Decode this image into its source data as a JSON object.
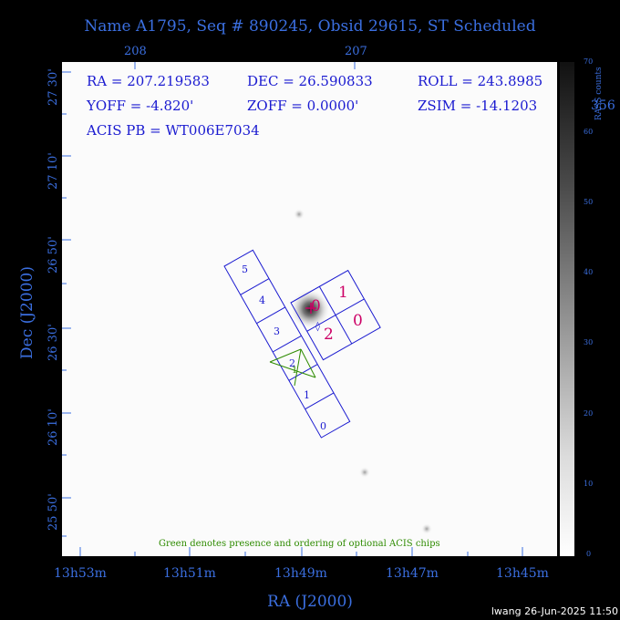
{
  "title": "Name A1795, Seq # 890245, Obsid 29615, ST Scheduled",
  "info": {
    "ra": "RA = 207.219583",
    "dec": "DEC = 26.590833",
    "roll": "ROLL = 243.8985",
    "yoff": "YOFF =  -4.820'",
    "zoff": "ZOFF =  0.0000'",
    "zsim": "ZSIM = -14.1203",
    "acis_pb": "ACIS PB = WT006E7034"
  },
  "top_axis": {
    "ticks": [
      "208",
      "207"
    ]
  },
  "x_axis": {
    "label": "RA (J2000)",
    "ticks": [
      "13h53m",
      "13h51m",
      "13h49m",
      "13h47m",
      "13h45m"
    ]
  },
  "y_axis": {
    "label": "Dec (J2000)",
    "ticks": [
      "27 30'",
      "27 10'",
      "26 50'",
      "26 30'",
      "26 10'",
      "25 50'"
    ]
  },
  "colorbar": {
    "label": "RASS counts",
    "ticks": [
      "70",
      "60",
      "50",
      "40",
      "30",
      "20",
      "10",
      "0"
    ],
    "overflow_label": "356"
  },
  "chips": {
    "s_array": [
      "5",
      "4",
      "3",
      "2",
      "1",
      "0"
    ],
    "i_array": [
      "1",
      "0",
      "2",
      "0"
    ]
  },
  "optional_chips": [
    "2",
    "1"
  ],
  "note": "Green denotes presence and ordering of optional ACIS chips",
  "footer": "lwang 26-Jun-2025 11:50",
  "colors": {
    "axes": "#3b6fe0",
    "chips": "#1a1ad0",
    "aimpoint": "#cc0066",
    "optional": "#2e8b00"
  }
}
